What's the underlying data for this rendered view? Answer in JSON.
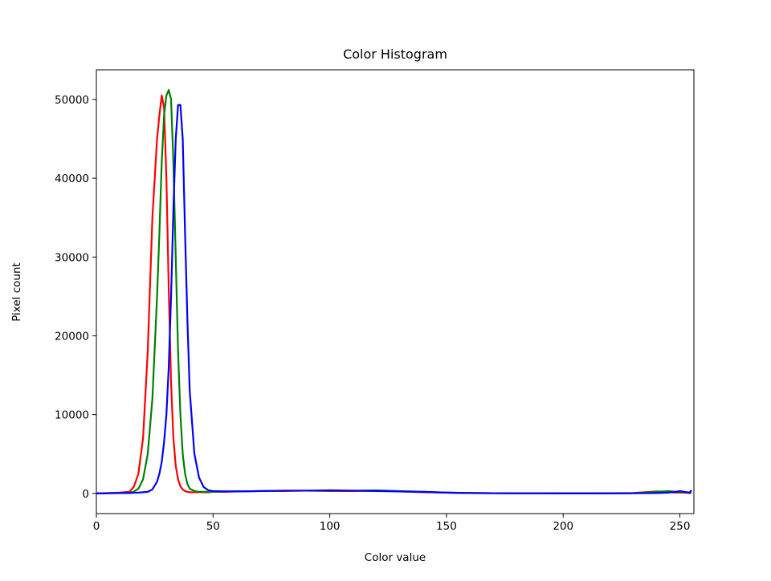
{
  "chart_data": {
    "type": "line",
    "title": "Color Histogram",
    "xlabel": "Color value",
    "ylabel": "Pixel count",
    "x": [
      0,
      5,
      10,
      14,
      16,
      18,
      20,
      22,
      24,
      26,
      27,
      28,
      29,
      30,
      31,
      32,
      33,
      34,
      35,
      36,
      37,
      38,
      39,
      40,
      42,
      44,
      46,
      48,
      50,
      55,
      60,
      70,
      80,
      90,
      100,
      110,
      120,
      130,
      140,
      150,
      160,
      170,
      180,
      190,
      200,
      210,
      220,
      230,
      235,
      240,
      245,
      248,
      250,
      252,
      254,
      255
    ],
    "series": [
      {
        "color": "#ff0000",
        "values": [
          0,
          50,
          100,
          200,
          800,
          2500,
          7000,
          18000,
          35000,
          45000,
          48000,
          50500,
          49000,
          40000,
          26000,
          14000,
          7000,
          3500,
          1800,
          900,
          500,
          300,
          200,
          150,
          150,
          150,
          150,
          150,
          200,
          200,
          250,
          300,
          300,
          350,
          300,
          300,
          350,
          250,
          150,
          100,
          50,
          30,
          20,
          20,
          10,
          10,
          20,
          50,
          150,
          250,
          200,
          100,
          100,
          100,
          50,
          50
        ]
      },
      {
        "color": "#008000",
        "values": [
          0,
          30,
          50,
          100,
          200,
          600,
          1800,
          5000,
          12000,
          25000,
          33000,
          42000,
          48000,
          50500,
          51200,
          50000,
          42000,
          30000,
          18000,
          10000,
          5000,
          2500,
          1200,
          600,
          300,
          200,
          200,
          200,
          200,
          250,
          250,
          300,
          350,
          350,
          350,
          350,
          400,
          300,
          200,
          100,
          50,
          30,
          20,
          20,
          10,
          10,
          20,
          40,
          100,
          200,
          300,
          200,
          150,
          200,
          100,
          50
        ]
      },
      {
        "color": "#0000ff",
        "values": [
          0,
          20,
          50,
          50,
          80,
          100,
          150,
          200,
          500,
          1500,
          2500,
          4000,
          6500,
          10000,
          16000,
          25000,
          36000,
          45000,
          49300,
          49300,
          45000,
          33000,
          22000,
          13000,
          5000,
          2000,
          800,
          400,
          300,
          250,
          250,
          300,
          350,
          350,
          400,
          350,
          300,
          250,
          200,
          100,
          50,
          30,
          20,
          20,
          10,
          10,
          10,
          20,
          30,
          50,
          100,
          200,
          300,
          200,
          100,
          400
        ]
      }
    ],
    "xlim": [
      0,
      256
    ],
    "ylim": [
      -2560,
      53760
    ],
    "xticks": [
      0,
      50,
      100,
      150,
      200,
      250
    ],
    "yticks": [
      0,
      10000,
      20000,
      30000,
      40000,
      50000
    ]
  }
}
